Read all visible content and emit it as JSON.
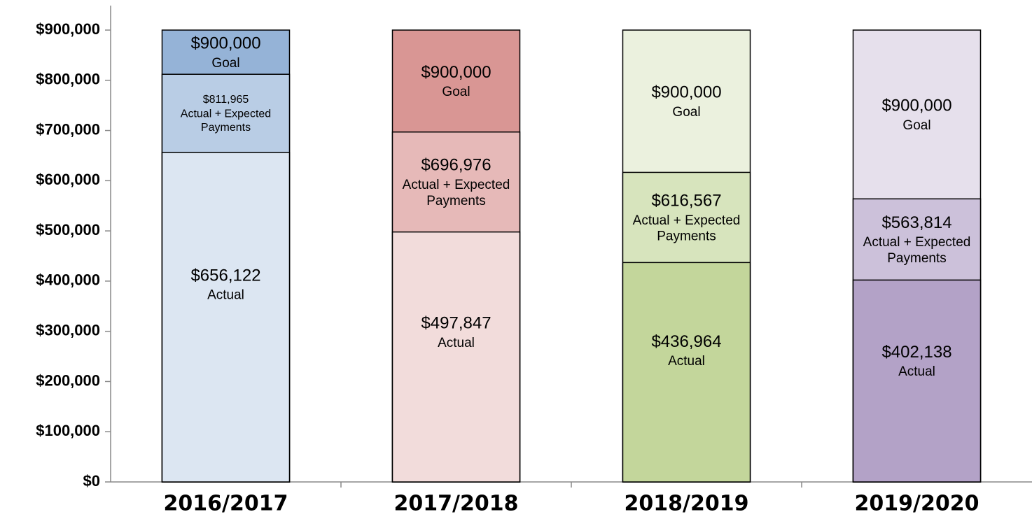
{
  "chart_data": {
    "type": "bar",
    "categories": [
      "2016/2017",
      "2017/2018",
      "2018/2019",
      "2019/2020"
    ],
    "series": [
      {
        "name": "Actual",
        "colors": [
          "#dce6f2",
          "#f2dcdb",
          "#c3d69b",
          "#b3a2c7"
        ],
        "values": [
          656122,
          497847,
          436964,
          402138
        ],
        "value_labels": [
          "$656,122",
          "$497,847",
          "$436,964",
          "$402,138"
        ]
      },
      {
        "name": "Actual + Expected Payments",
        "colors": [
          "#b9cde5",
          "#e6b9b8",
          "#d7e4bd",
          "#ccc1da"
        ],
        "values": [
          811965,
          696976,
          616567,
          563814
        ],
        "value_labels": [
          "$811,965",
          "$696,976",
          "$616,567",
          "$563,814"
        ]
      },
      {
        "name": "Goal",
        "colors": [
          "#95b3d7",
          "#d99694",
          "#ebf1de",
          "#e6e0ec"
        ],
        "values": [
          900000,
          900000,
          900000,
          900000
        ],
        "value_labels": [
          "$900,000",
          "$900,000",
          "$900,000",
          "$900,000"
        ]
      }
    ],
    "ylim": [
      0,
      900000
    ],
    "yticks": [
      {
        "value": 0,
        "label": "$0"
      },
      {
        "value": 100000,
        "label": "$100,000"
      },
      {
        "value": 200000,
        "label": "$200,000"
      },
      {
        "value": 300000,
        "label": "$300,000"
      },
      {
        "value": 400000,
        "label": "$400,000"
      },
      {
        "value": 500000,
        "label": "$500,000"
      },
      {
        "value": 600000,
        "label": "$600,000"
      },
      {
        "value": 700000,
        "label": "$700,000"
      },
      {
        "value": 800000,
        "label": "$800,000"
      },
      {
        "value": 900000,
        "label": "$900,000"
      }
    ]
  }
}
